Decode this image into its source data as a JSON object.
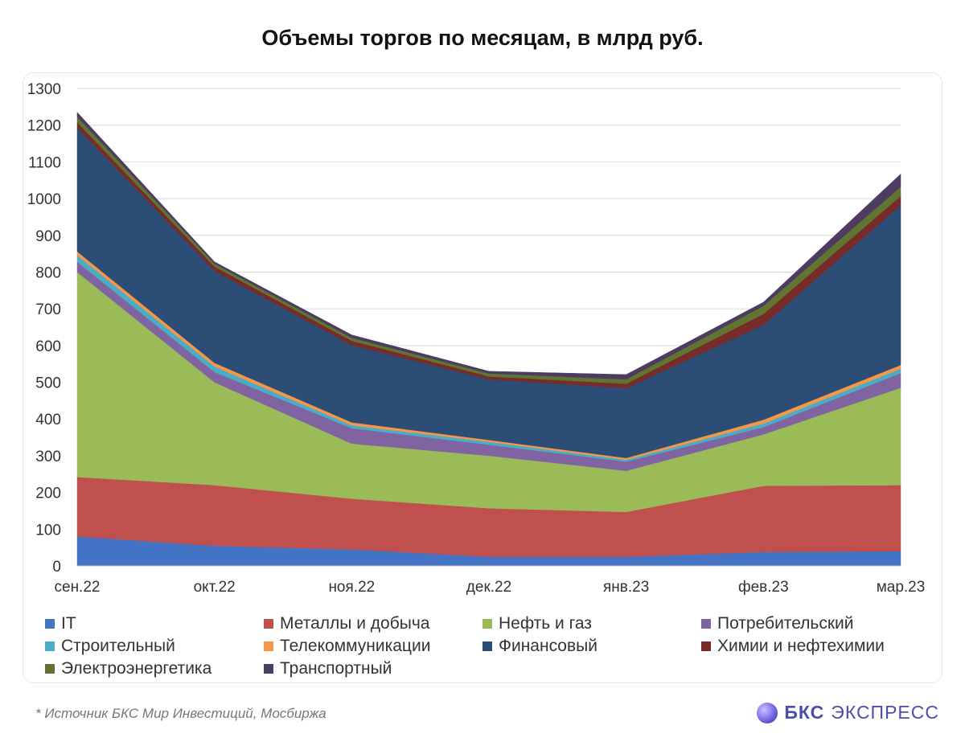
{
  "title": "Объемы торгов по месяцам, в млрд руб.",
  "chart_data": {
    "type": "area",
    "stacked": true,
    "categories": [
      "сен.22",
      "окт.22",
      "ноя.22",
      "дек.22",
      "янв.23",
      "фев.23",
      "мар.23"
    ],
    "ylim": [
      0,
      1300
    ],
    "yticks": [
      0,
      100,
      200,
      300,
      400,
      500,
      600,
      700,
      800,
      900,
      1000,
      1100,
      1200,
      1300
    ],
    "grid": true,
    "legend_position": "bottom",
    "series": [
      {
        "name": "IT",
        "color": "#4472c4",
        "values": [
          80,
          55,
          45,
          25,
          25,
          38,
          40
        ]
      },
      {
        "name": "Металлы и добыча",
        "color": "#c0504d",
        "values": [
          162,
          165,
          138,
          132,
          122,
          180,
          180
        ]
      },
      {
        "name": "Нефть и газ",
        "color": "#9bbb59",
        "values": [
          558,
          280,
          150,
          143,
          112,
          140,
          265
        ]
      },
      {
        "name": "Потребительский",
        "color": "#8064a2",
        "values": [
          28,
          28,
          42,
          30,
          25,
          20,
          40
        ]
      },
      {
        "name": "Строительный",
        "color": "#4bacc6",
        "values": [
          18,
          15,
          8,
          8,
          5,
          10,
          12
        ]
      },
      {
        "name": "Телекоммуникации",
        "color": "#f79646",
        "values": [
          10,
          10,
          8,
          5,
          5,
          10,
          10
        ]
      },
      {
        "name": "Финансовый",
        "color": "#2c4d75",
        "values": [
          337,
          250,
          210,
          165,
          190,
          258,
          435
        ]
      },
      {
        "name": "Химии и нефтехимии",
        "color": "#772c2a",
        "values": [
          15,
          12,
          12,
          8,
          12,
          30,
          25
        ]
      },
      {
        "name": "Электроэнергетика",
        "color": "#5f7530",
        "values": [
          15,
          8,
          8,
          8,
          12,
          22,
          25
        ]
      },
      {
        "name": "Транспортный",
        "color": "#4d3b62",
        "values": [
          12,
          5,
          8,
          6,
          13,
          10,
          35
        ]
      }
    ]
  },
  "footnote": "*  Источник БКС Мир Инвестиций, Мосбиржа",
  "brand": {
    "bold": "БКС",
    "rest": "ЭКСПРЕСС"
  }
}
